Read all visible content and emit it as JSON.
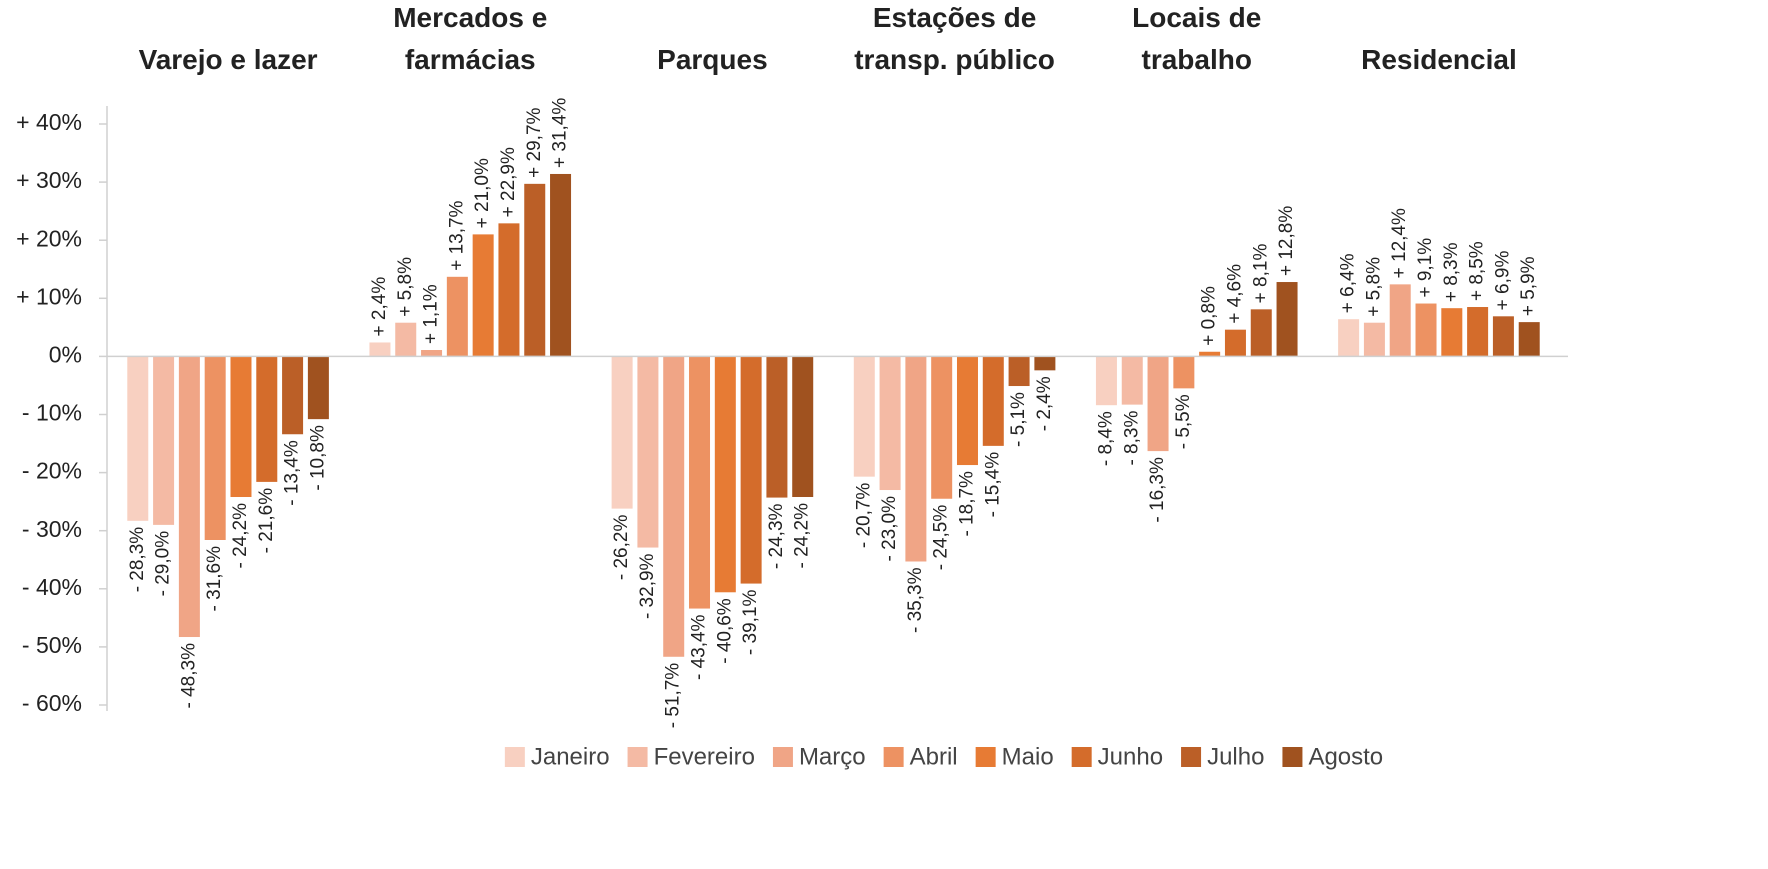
{
  "chart_data": {
    "type": "bar",
    "categories": [
      "Varejo e lazer",
      "Mercados e\nfarmácias",
      "Parques",
      "Estações de\ntransp. público",
      "Locais de\ntrabalho",
      "Residencial"
    ],
    "ylim": [
      -60,
      40
    ],
    "yticks": [
      {
        "value": -60,
        "label": "- 60%"
      },
      {
        "value": -50,
        "label": "- 50%"
      },
      {
        "value": -40,
        "label": "- 40%"
      },
      {
        "value": -30,
        "label": "- 30%"
      },
      {
        "value": -20,
        "label": "- 20%"
      },
      {
        "value": -10,
        "label": "- 10%"
      },
      {
        "value": 0,
        "label": "0%"
      },
      {
        "value": 10,
        "label": "+ 10%"
      },
      {
        "value": 20,
        "label": "+ 20%"
      },
      {
        "value": 30,
        "label": "+ 30%"
      },
      {
        "value": 40,
        "label": "+ 40%"
      }
    ],
    "grid": false,
    "legend": "bottom",
    "series": [
      {
        "name": "Janeiro",
        "color": "#f8d0c1",
        "values": [
          -28.3,
          2.4,
          -26.2,
          -20.7,
          -8.4,
          6.4
        ],
        "value_labels": [
          "- 28,3%",
          "+ 2,4%",
          "- 26,2%",
          "- 20,7%",
          "- 8,4%",
          "+ 6,4%"
        ]
      },
      {
        "name": "Fevereiro",
        "color": "#f4baa4",
        "values": [
          -29.0,
          5.8,
          -32.9,
          -23.0,
          -8.3,
          5.8
        ],
        "value_labels": [
          "- 29,0%",
          "+ 5,8%",
          "- 32,9%",
          "- 23,0%",
          "- 8,3%",
          "+ 5,8%"
        ]
      },
      {
        "name": "Março",
        "color": "#f0a586",
        "values": [
          -48.3,
          1.1,
          -51.7,
          -35.3,
          -16.3,
          12.4
        ],
        "value_labels": [
          "- 48,3%",
          "+ 1,1%",
          "- 51,7%",
          "- 35,3%",
          "- 16,3%",
          "+ 12,4%"
        ]
      },
      {
        "name": "Abril",
        "color": "#ed9262",
        "values": [
          -31.6,
          13.7,
          -43.4,
          -24.5,
          -5.5,
          9.1
        ],
        "value_labels": [
          "- 31,6%",
          "+ 13,7%",
          "- 43,4%",
          "- 24,5%",
          "- 5,5%",
          "+ 9,1%"
        ]
      },
      {
        "name": "Maio",
        "color": "#e77b34",
        "values": [
          -24.2,
          21.0,
          -40.6,
          -18.7,
          0.8,
          8.3
        ],
        "value_labels": [
          "- 24,2%",
          "+ 21,0%",
          "- 40,6%",
          "- 18,7%",
          "+ 0,8%",
          "+ 8,3%"
        ]
      },
      {
        "name": "Junho",
        "color": "#d46c2b",
        "values": [
          -21.6,
          22.9,
          -39.1,
          -15.4,
          4.6,
          8.5
        ],
        "value_labels": [
          "- 21,6%",
          "+ 22,9%",
          "- 39,1%",
          "- 15,4%",
          "+ 4,6%",
          "+ 8,5%"
        ]
      },
      {
        "name": "Julho",
        "color": "#bb5f27",
        "values": [
          -13.4,
          29.7,
          -24.3,
          -5.1,
          8.1,
          6.9
        ],
        "value_labels": [
          "- 13,4%",
          "+ 29,7%",
          "- 24,3%",
          "- 5,1%",
          "+ 8,1%",
          "+ 6,9%"
        ]
      },
      {
        "name": "Agosto",
        "color": "#a0521f",
        "values": [
          -10.8,
          31.4,
          -24.2,
          -2.4,
          12.8,
          5.9
        ],
        "value_labels": [
          "- 10,8%",
          "+ 31,4%",
          "- 24,2%",
          "- 2,4%",
          "+ 12,8%",
          "+ 5,9%"
        ]
      }
    ]
  }
}
